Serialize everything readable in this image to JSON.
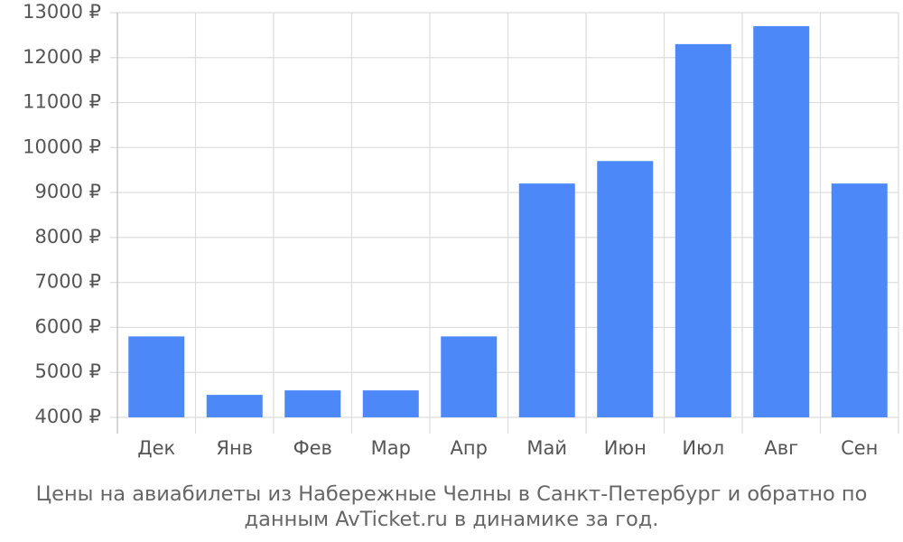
{
  "chart_data": {
    "type": "bar",
    "title": "Цены на авиабилеты из Набережные Челны в Санкт-Петербург и обратно по данным AvTicket.ru в динамике за год.",
    "categories": [
      "Дек",
      "Янв",
      "Фев",
      "Мар",
      "Апр",
      "Май",
      "Июн",
      "Июл",
      "Авг",
      "Сен"
    ],
    "values": [
      5800,
      4500,
      4600,
      4600,
      5800,
      9200,
      9700,
      12300,
      12700,
      9200
    ],
    "color": "#4d88f9",
    "ylim": [
      4000,
      13000
    ],
    "yticks": [
      {
        "value": 4000,
        "label": "4000 ₽"
      },
      {
        "value": 5000,
        "label": "5000 ₽"
      },
      {
        "value": 6000,
        "label": "6000 ₽"
      },
      {
        "value": 7000,
        "label": "7000 ₽"
      },
      {
        "value": 8000,
        "label": "8000 ₽"
      },
      {
        "value": 9000,
        "label": "9000 ₽"
      },
      {
        "value": 10000,
        "label": "10000 ₽"
      },
      {
        "value": 11000,
        "label": "11000 ₽"
      },
      {
        "value": 12000,
        "label": "12000 ₽"
      },
      {
        "value": 13000,
        "label": "13000 ₽"
      }
    ],
    "grid": true
  }
}
